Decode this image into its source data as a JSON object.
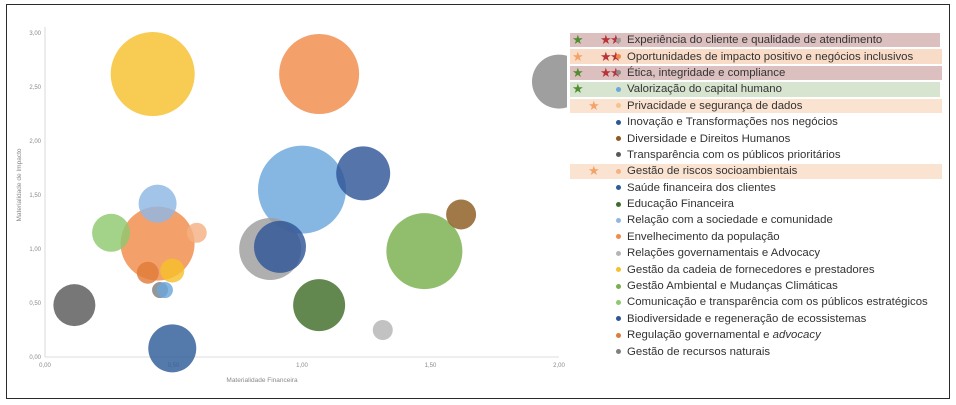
{
  "colors": {
    "band_red": "#dcc0c0",
    "band_orange": "#f9dcc7",
    "band_green": "#d7e4cf",
    "band_peach": "#fbe3d2",
    "star_green": "#4f8f2f",
    "star_red": "#b8343a",
    "star_orange": "#f3a36a"
  },
  "chart_data": {
    "type": "bubble",
    "xlabel": "Materialidade Financeira",
    "ylabel": "Materialidade de Impacto",
    "xlim": [
      0,
      2.1
    ],
    "ylim": [
      0,
      3.0
    ],
    "x_ticks": [
      "0,00",
      "0,50",
      "1,00",
      "1,50",
      "2,00"
    ],
    "y_ticks": [
      "0,00",
      "0,50",
      "1,00",
      "1,50",
      "2,00",
      "2,50",
      "3,00"
    ],
    "grid": false,
    "legend_position": "right",
    "series": [
      {
        "name": "Experiência do cliente e qualidade de atendimento",
        "color": "#9e9e9e",
        "bands": "red",
        "stars": [
          "green",
          "red",
          "red"
        ],
        "x": 0.92,
        "y": 1.0,
        "size": 31
      },
      {
        "name": "Oportunidades de impacto positivo e negócios inclusivos",
        "color": "#f08b4b",
        "bands": "orange",
        "stars": [
          "orange",
          "red",
          "red"
        ],
        "x": 1.12,
        "y": 2.62,
        "size": 40
      },
      {
        "name": "Ética, integridade e compliance",
        "color": "#8a8a8a",
        "bands": "red",
        "stars": [
          "green",
          "red",
          "red"
        ],
        "x": 2.1,
        "y": 2.55,
        "size": 27
      },
      {
        "name": "Valorização do capital humano",
        "color": "#6aa7dc",
        "bands": "green",
        "stars": [
          "green"
        ],
        "x": 1.05,
        "y": 1.55,
        "size": 44
      },
      {
        "name": "Privacidade e segurança de dados",
        "color": "#f6c28f",
        "bands": "peach",
        "stars": [
          "orange"
        ],
        "x": 0.95,
        "y": 1.48,
        "size": 0
      },
      {
        "name": "Inovação e Transformações nos negócios",
        "color": "#2f5597",
        "bands": "none",
        "stars": [],
        "x": 1.3,
        "y": 1.7,
        "size": 27
      },
      {
        "name": "Diversidade e Direitos Humanos",
        "color": "#8c5a1e",
        "bands": "none",
        "stars": [],
        "x": 1.7,
        "y": 1.32,
        "size": 15
      },
      {
        "name": "Transparência com os públicos prioritários",
        "color": "#595959",
        "bands": "none",
        "stars": [],
        "x": 0.12,
        "y": 0.48,
        "size": 21
      },
      {
        "name": "Gestão de riscos socioambientais",
        "color": "#f4b183",
        "bands": "peach",
        "stars": [
          "orange"
        ],
        "x": 0.62,
        "y": 1.15,
        "size": 10
      },
      {
        "name": "Saúde financeira dos clientes",
        "color": "#2e5c99",
        "bands": "none",
        "stars": [],
        "x": 0.52,
        "y": 0.08,
        "size": 24
      },
      {
        "name": "Educação Financeira",
        "color": "#3f6e2a",
        "bands": "none",
        "stars": [],
        "x": 1.12,
        "y": 0.48,
        "size": 26
      },
      {
        "name": "Relação com a sociedade e comunidade",
        "color": "#8fb7e4",
        "bands": "none",
        "stars": [],
        "x": 0.46,
        "y": 1.42,
        "size": 19
      },
      {
        "name": "Envelhecimento da população",
        "color": "#f08b4b",
        "bands": "none",
        "stars": [],
        "x": 0.46,
        "y": 1.05,
        "size": 37
      },
      {
        "name": "Relações governamentais e Advocacy",
        "color": "#b5b5b5",
        "bands": "none",
        "stars": [],
        "x": 1.38,
        "y": 0.25,
        "size": 10
      },
      {
        "name": "Gestão da cadeia de fornecedores e prestadores",
        "color": "#f7c02c",
        "bands": "none",
        "stars": [],
        "x": 0.44,
        "y": 2.62,
        "size": 42
      },
      {
        "name": "Gestão Ambiental e Mudanças Climáticas",
        "color": "#79b04d",
        "bands": "none",
        "stars": [],
        "x": 1.55,
        "y": 0.98,
        "size": 38
      },
      {
        "name": "Comunicação e transparência com os públicos estratégicos",
        "color": "#8fc86f",
        "bands": "none",
        "stars": [],
        "x": 0.27,
        "y": 1.15,
        "size": 19
      },
      {
        "name": "Biodiversidade e regeneração de ecossistemas",
        "color": "#2f5597",
        "bands": "none",
        "stars": [],
        "x": 0.96,
        "y": 1.02,
        "size": 26
      },
      {
        "name": "Regulação governamental e advocacy",
        "color": "#e07b39",
        "bands": "none",
        "stars": [],
        "x": 0.42,
        "y": 0.78,
        "size": 11
      },
      {
        "name": "Gestão de recursos naturais",
        "color": "#7f7f7f",
        "bands": "none",
        "stars": [],
        "x": 0.47,
        "y": 0.62,
        "size": 8
      }
    ],
    "extra_points": [
      {
        "color": "#6aa7dc",
        "x": 0.49,
        "y": 0.62,
        "size": 8
      },
      {
        "color": "#f7c02c",
        "x": 0.52,
        "y": 0.8,
        "size": 12
      }
    ]
  },
  "legend": {
    "items": [
      {
        "pre": "Experiência do cliente e qualidade de atendimento",
        "italic": "",
        "post": ""
      },
      {
        "pre": "Oportunidades de impacto positivo e negócios inclusivos",
        "italic": "",
        "post": ""
      },
      {
        "pre": "Ética, integridade e compliance",
        "italic": "",
        "post": ""
      },
      {
        "pre": "Valorização do capital humano",
        "italic": "",
        "post": ""
      },
      {
        "pre": "Privacidade e segurança de dados",
        "italic": "",
        "post": ""
      },
      {
        "pre": "Inovação e Transformações nos negócios",
        "italic": "",
        "post": ""
      },
      {
        "pre": "Diversidade e Direitos Humanos",
        "italic": "",
        "post": ""
      },
      {
        "pre": "Transparência com os públicos prioritários",
        "italic": "",
        "post": ""
      },
      {
        "pre": "Gestão de riscos socioambientais",
        "italic": "",
        "post": ""
      },
      {
        "pre": "Saúde financeira dos clientes",
        "italic": "",
        "post": ""
      },
      {
        "pre": "Educação Financeira",
        "italic": "",
        "post": ""
      },
      {
        "pre": "Relação com a sociedade e comunidade",
        "italic": "",
        "post": ""
      },
      {
        "pre": "Envelhecimento da população",
        "italic": "",
        "post": ""
      },
      {
        "pre": "Relações governamentais e Advocacy",
        "italic": "",
        "post": ""
      },
      {
        "pre": "Gestão da cadeia de fornecedores e prestadores",
        "italic": "",
        "post": ""
      },
      {
        "pre": "Gestão Ambiental e Mudanças Climáticas",
        "italic": "",
        "post": ""
      },
      {
        "pre": "Comunicação e transparência com os públicos estratégicos",
        "italic": "",
        "post": ""
      },
      {
        "pre": "Biodiversidade e regeneração de ecossistemas",
        "italic": "",
        "post": ""
      },
      {
        "pre": "Regulação governamental e ",
        "italic": "advocacy",
        "post": ""
      },
      {
        "pre": "Gestão de recursos naturais",
        "italic": "",
        "post": ""
      }
    ]
  }
}
